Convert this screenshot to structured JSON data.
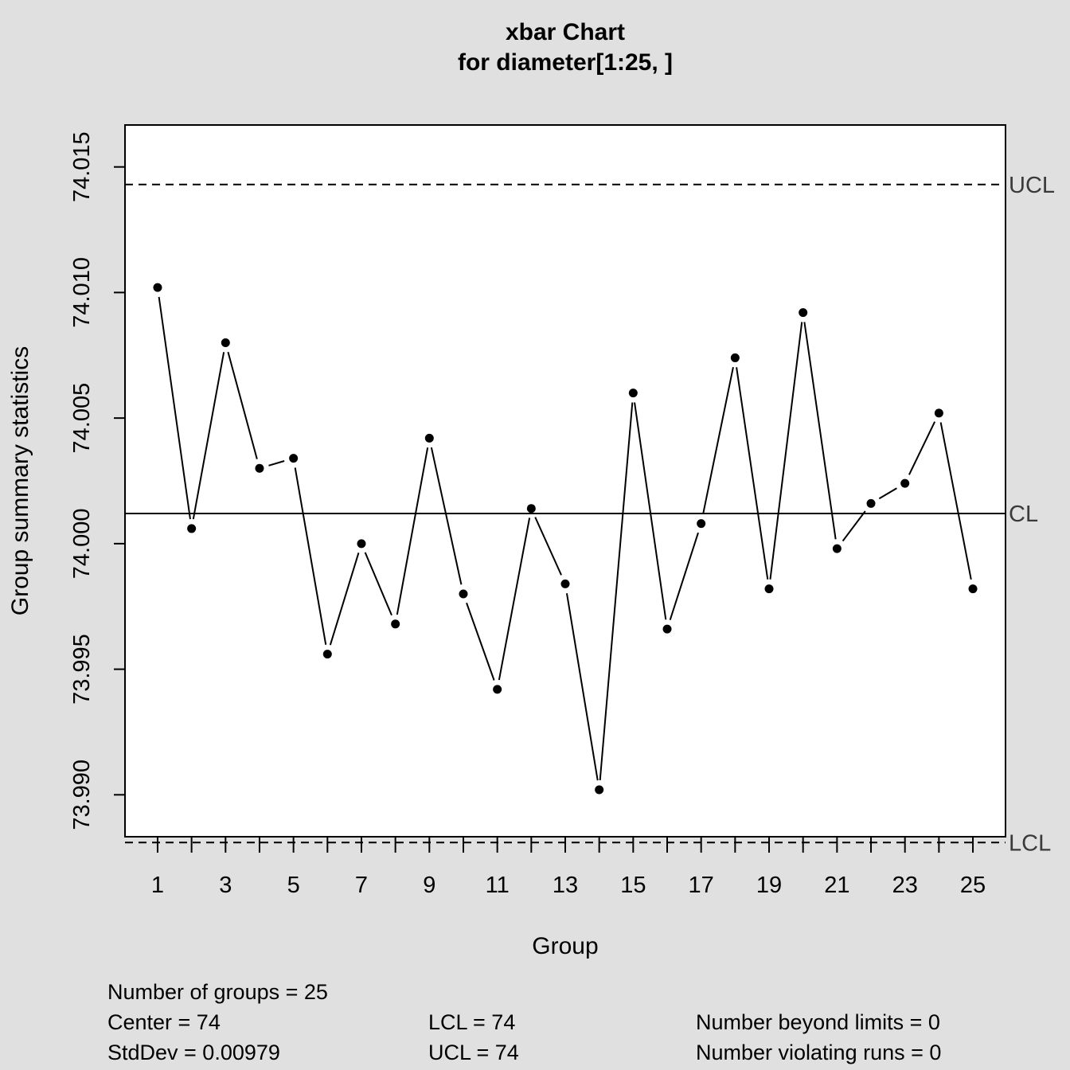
{
  "chart_data": {
    "type": "line",
    "title": "xbar Chart",
    "subtitle": "for diameter[1:25, ]",
    "xlabel": "Group",
    "ylabel": "Group summary statistics",
    "x": [
      1,
      2,
      3,
      4,
      5,
      6,
      7,
      8,
      9,
      10,
      11,
      12,
      13,
      14,
      15,
      16,
      17,
      18,
      19,
      20,
      21,
      22,
      23,
      24,
      25
    ],
    "values": [
      74.0102,
      74.0006,
      74.008,
      74.003,
      74.0034,
      73.9956,
      74.0,
      73.9968,
      74.0042,
      73.998,
      73.9942,
      74.0014,
      73.9984,
      73.9902,
      74.006,
      73.9966,
      74.0008,
      74.0074,
      73.9982,
      74.0092,
      73.9998,
      74.0016,
      74.0024,
      74.0052,
      73.9982
    ],
    "xlim": [
      0.04,
      25.96
    ],
    "ylim": [
      73.98833,
      74.01667
    ],
    "x_ticks": [
      1,
      2,
      3,
      4,
      5,
      6,
      7,
      8,
      9,
      10,
      11,
      12,
      13,
      14,
      15,
      16,
      17,
      18,
      19,
      20,
      21,
      22,
      23,
      24,
      25
    ],
    "x_tick_labels": [
      "1",
      "",
      "3",
      "",
      "5",
      "",
      "7",
      "",
      "9",
      "",
      "11",
      "",
      "13",
      "",
      "15",
      "",
      "17",
      "",
      "19",
      "",
      "21",
      "",
      "23",
      "",
      "25"
    ],
    "y_ticks": [
      73.99,
      73.995,
      74.0,
      74.005,
      74.01,
      74.015
    ],
    "y_tick_labels": [
      "73.990",
      "73.995",
      "74.000",
      "74.005",
      "74.010",
      "74.015"
    ],
    "limits": {
      "center": 74.0012,
      "ucl": 74.0143,
      "lcl": 73.9881,
      "ucl_label": "UCL",
      "cl_label": "CL",
      "lcl_label": "LCL"
    },
    "grid": false,
    "colors": {
      "background": "#e0e0e0",
      "plot_area": "#ffffff",
      "line": "#000000",
      "limit_label": "#3a3a3a"
    }
  },
  "stats": {
    "groups": "Number of groups = 25",
    "center": "Center = 74",
    "stddev": "StdDev = 0.00979",
    "lcl": "LCL = 74",
    "ucl": "UCL = 74",
    "beyond_limits": "Number beyond limits = 0",
    "violating_runs": "Number violating runs = 0"
  }
}
